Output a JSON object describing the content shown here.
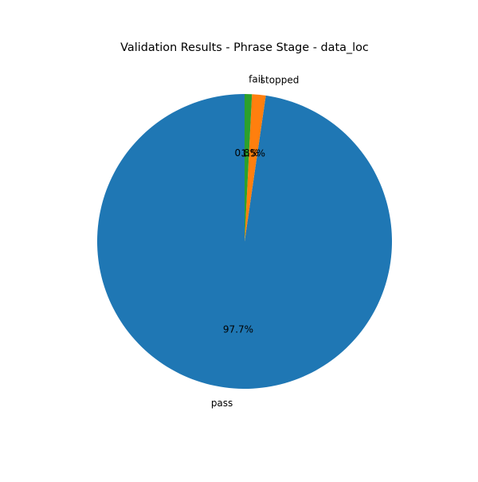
{
  "chart_data": {
    "type": "pie",
    "title": "Validation Results - Phrase Stage - data_loc",
    "categories": [
      "pass",
      "stopped",
      "fail"
    ],
    "values": [
      97.7,
      1.5,
      0.8
    ],
    "percent_labels": [
      "97.7%",
      "1.5%",
      "0.8%"
    ],
    "colors": [
      "#1f77b4",
      "#ff7f0e",
      "#2ca02c"
    ],
    "start_angle_deg": 90,
    "direction": "clockwise",
    "legend": "none"
  }
}
